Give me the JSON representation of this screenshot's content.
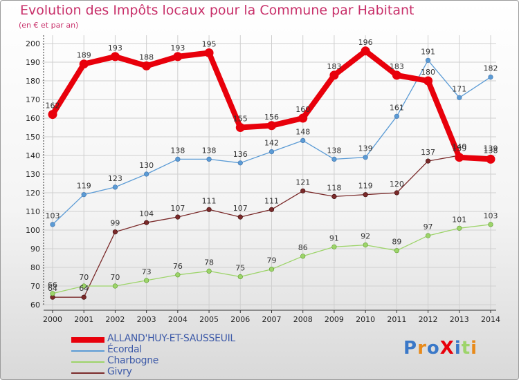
{
  "header": {
    "title": "Evolution des Impôts locaux pour la Commune par Habitant",
    "subtitle": "(en € et par an)"
  },
  "logo": {
    "text": "ProXiti"
  },
  "chart_data": {
    "type": "line",
    "title": "Evolution des Impôts locaux pour la Commune par Habitant",
    "subtitle": "(en € et par an)",
    "x": [
      "2000",
      "2001",
      "2002",
      "2003",
      "2004",
      "2005",
      "2006",
      "2007",
      "2008",
      "2009",
      "2010",
      "2011",
      "2012",
      "2013",
      "2014"
    ],
    "ylim": [
      60,
      200
    ],
    "yticks": [
      60,
      70,
      80,
      90,
      100,
      110,
      120,
      130,
      140,
      150,
      160,
      170,
      180,
      190,
      200
    ],
    "grid": true,
    "legend_position": "bottom-left",
    "series": [
      {
        "name": "ALLAND'HUY-ET-SAUSSEUIL",
        "color": "#e8000b",
        "width": 8,
        "values": [
          162,
          189,
          193,
          188,
          193,
          195,
          155,
          156,
          160,
          183,
          196,
          183,
          180,
          139,
          138
        ],
        "labels": [
          "162",
          "189",
          "193",
          "188",
          "193",
          "195",
          "155",
          "156",
          "160",
          "183",
          "196",
          "183",
          "180",
          "139",
          "138"
        ]
      },
      {
        "name": "Écordal",
        "color": "#5b9bd5",
        "width": 1.3,
        "values": [
          103,
          119,
          123,
          130,
          138,
          138,
          136,
          142,
          148,
          138,
          139,
          161,
          191,
          171,
          182
        ],
        "labels": [
          "103",
          "119",
          "123",
          "130",
          "138",
          "138",
          "136",
          "142",
          "148",
          "138",
          "139",
          "161",
          "191",
          "171",
          "182"
        ]
      },
      {
        "name": "Charbogne",
        "color": "#9dd46a",
        "width": 1.3,
        "values": [
          66,
          70,
          70,
          73,
          76,
          78,
          75,
          79,
          86,
          91,
          92,
          89,
          97,
          101,
          103
        ],
        "labels": [
          "66",
          "70",
          "70",
          "73",
          "76",
          "78",
          "75",
          "79",
          "86",
          "91",
          "92",
          "89",
          "97",
          "101",
          "103"
        ]
      },
      {
        "name": "Givry",
        "color": "#7a2a2a",
        "width": 1.3,
        "values": [
          64,
          64,
          99,
          104,
          107,
          111,
          107,
          111,
          121,
          118,
          119,
          120,
          137,
          140,
          139
        ],
        "labels": [
          "64",
          "64",
          "99",
          "104",
          "107",
          "111",
          "107",
          "111",
          "121",
          "118",
          "119",
          "120",
          "137",
          "140",
          "139"
        ]
      }
    ]
  }
}
